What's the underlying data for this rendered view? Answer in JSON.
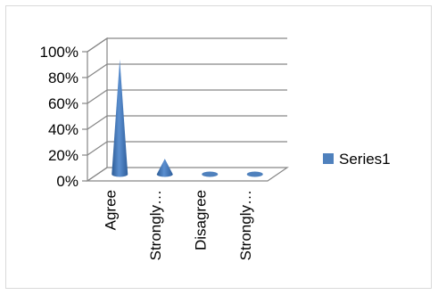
{
  "chart_data": {
    "type": "bar",
    "bar_shape": "cone-3d",
    "categories": [
      "Agree",
      "Strongly…",
      "Disagree",
      "Strongly…"
    ],
    "series": [
      {
        "name": "Series1",
        "values": [
          0.89,
          0.12,
          0.01,
          0.01
        ],
        "color": "#4f81bd"
      }
    ],
    "y_ticks": [
      "0%",
      "20%",
      "40%",
      "60%",
      "80%",
      "100%"
    ],
    "ylim": [
      0,
      1
    ],
    "grid": true,
    "legend_position": "right"
  }
}
